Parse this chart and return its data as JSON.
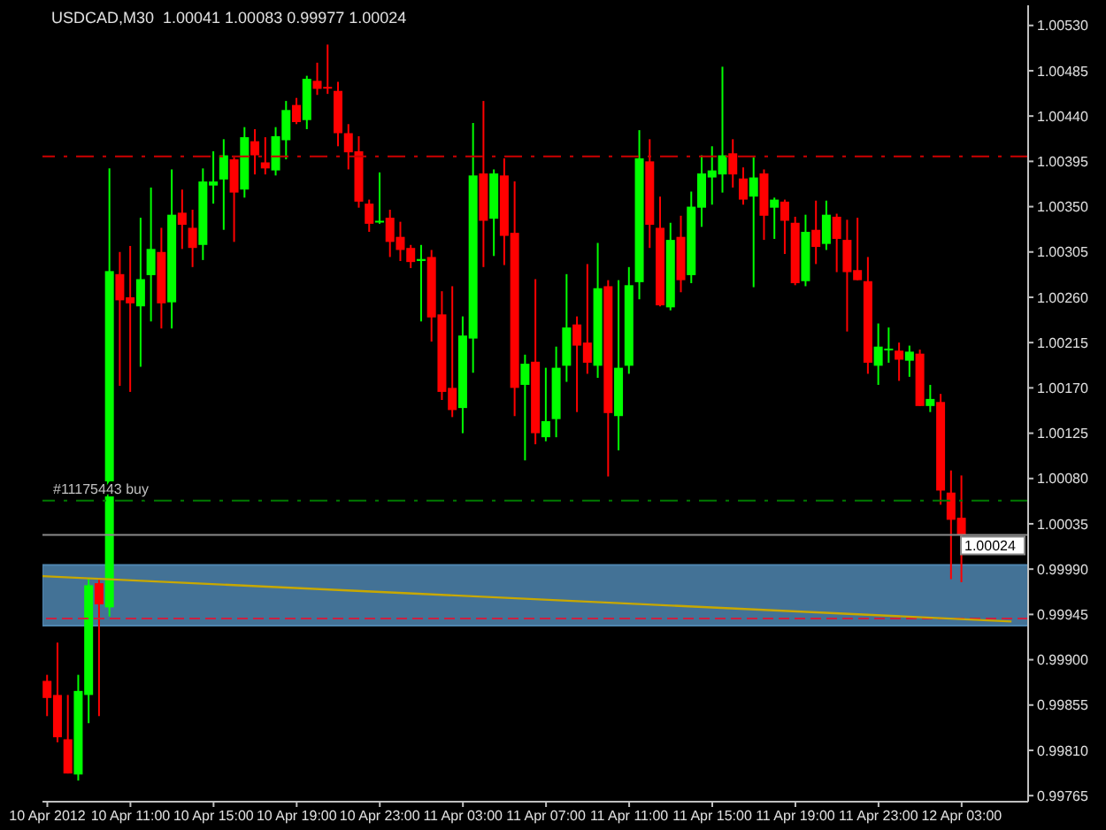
{
  "chart_data": {
    "type": "candlestick",
    "title": "USDCAD,M30  1.00041 1.00083 0.99977 1.00024",
    "x": [
      "2012-04-10T07:00",
      "2012-04-10T07:30",
      "2012-04-10T08:00",
      "2012-04-10T08:30",
      "2012-04-10T09:00",
      "2012-04-10T09:30",
      "2012-04-10T10:00",
      "2012-04-10T10:30",
      "2012-04-10T11:00",
      "2012-04-10T11:30",
      "2012-04-10T12:00",
      "2012-04-10T12:30",
      "2012-04-10T13:00",
      "2012-04-10T13:30",
      "2012-04-10T14:00",
      "2012-04-10T14:30",
      "2012-04-10T15:00",
      "2012-04-10T15:30",
      "2012-04-10T16:00",
      "2012-04-10T16:30",
      "2012-04-10T17:00",
      "2012-04-10T17:30",
      "2012-04-10T18:00",
      "2012-04-10T18:30",
      "2012-04-10T19:00",
      "2012-04-10T19:30",
      "2012-04-10T20:00",
      "2012-04-10T20:30",
      "2012-04-10T21:00",
      "2012-04-10T21:30",
      "2012-04-10T22:00",
      "2012-04-10T22:30",
      "2012-04-10T23:00",
      "2012-04-10T23:30",
      "2012-04-11T00:00",
      "2012-04-11T00:30",
      "2012-04-11T01:00",
      "2012-04-11T01:30",
      "2012-04-11T02:00",
      "2012-04-11T02:30",
      "2012-04-11T03:00",
      "2012-04-11T03:30",
      "2012-04-11T04:00",
      "2012-04-11T04:30",
      "2012-04-11T05:00",
      "2012-04-11T05:30",
      "2012-04-11T06:00",
      "2012-04-11T06:30",
      "2012-04-11T07:00",
      "2012-04-11T07:30",
      "2012-04-11T08:00",
      "2012-04-11T08:30",
      "2012-04-11T09:00",
      "2012-04-11T09:30",
      "2012-04-11T10:00",
      "2012-04-11T10:30",
      "2012-04-11T11:00",
      "2012-04-11T11:30",
      "2012-04-11T12:00",
      "2012-04-11T12:30",
      "2012-04-11T13:00",
      "2012-04-11T13:30",
      "2012-04-11T14:00",
      "2012-04-11T14:30",
      "2012-04-11T15:00",
      "2012-04-11T15:30",
      "2012-04-11T16:00",
      "2012-04-11T16:30",
      "2012-04-11T17:00",
      "2012-04-11T17:30",
      "2012-04-11T18:00",
      "2012-04-11T18:30",
      "2012-04-11T19:00",
      "2012-04-11T19:30",
      "2012-04-11T20:00",
      "2012-04-11T20:30",
      "2012-04-11T21:00",
      "2012-04-11T21:30",
      "2012-04-11T22:00",
      "2012-04-11T22:30",
      "2012-04-11T23:00",
      "2012-04-11T23:30",
      "2012-04-12T00:00",
      "2012-04-12T00:30",
      "2012-04-12T01:00",
      "2012-04-12T01:30",
      "2012-04-12T02:00",
      "2012-04-12T02:30",
      "2012-04-12T03:00"
    ],
    "ohlc": [
      [
        0.99879,
        0.99885,
        0.99844,
        0.99862
      ],
      [
        0.99865,
        0.99917,
        0.99818,
        0.99823
      ],
      [
        0.99821,
        0.99865,
        0.99787,
        0.99787
      ],
      [
        0.99786,
        0.99885,
        0.9978,
        0.99869
      ],
      [
        0.99865,
        0.99981,
        0.99837,
        0.99974
      ],
      [
        0.99976,
        0.99981,
        0.99844,
        0.99955
      ],
      [
        0.99952,
        1.00388,
        0.99943,
        1.00286
      ],
      [
        1.00283,
        1.00305,
        1.00172,
        1.00257
      ],
      [
        1.0026,
        1.00311,
        1.00166,
        1.00254
      ],
      [
        1.00251,
        1.00339,
        1.00191,
        1.00278
      ],
      [
        1.00282,
        1.00369,
        1.00236,
        1.00308
      ],
      [
        1.00305,
        1.00329,
        1.00229,
        1.00254
      ],
      [
        1.00255,
        1.00387,
        1.00229,
        1.00342
      ],
      [
        1.00344,
        1.00367,
        1.00308,
        1.00332
      ],
      [
        1.00329,
        1.00347,
        1.0029,
        1.00309
      ],
      [
        1.00312,
        1.00388,
        1.00297,
        1.00375
      ],
      [
        1.00371,
        1.00405,
        1.00353,
        1.00375
      ],
      [
        1.00377,
        1.00417,
        1.00327,
        1.00401
      ],
      [
        1.00397,
        1.00399,
        1.00315,
        1.00364
      ],
      [
        1.00367,
        1.00429,
        1.00359,
        1.00419
      ],
      [
        1.00415,
        1.00427,
        1.00382,
        1.00401
      ],
      [
        1.00394,
        1.00419,
        1.00382,
        1.00388
      ],
      [
        1.00386,
        1.00429,
        1.00381,
        1.0042
      ],
      [
        1.00416,
        1.00455,
        1.00397,
        1.00446
      ],
      [
        1.00451,
        1.00458,
        1.00432,
        1.00434
      ],
      [
        1.00436,
        1.0048,
        1.00427,
        1.00477
      ],
      [
        1.00475,
        1.00493,
        1.00461,
        1.00467
      ],
      [
        1.00469,
        1.00511,
        1.00462,
        1.00468
      ],
      [
        1.00465,
        1.00474,
        1.0041,
        1.00423
      ],
      [
        1.00423,
        1.00432,
        1.00387,
        1.00404
      ],
      [
        1.00405,
        1.0042,
        1.00349,
        1.00355
      ],
      [
        1.00353,
        1.00357,
        1.00325,
        1.00333
      ],
      [
        1.00335,
        1.00384,
        1.00333,
        1.00336
      ],
      [
        1.00339,
        1.00347,
        1.003,
        1.00315
      ],
      [
        1.0032,
        1.00335,
        1.00296,
        1.00307
      ],
      [
        1.00309,
        1.00312,
        1.00289,
        1.00295
      ],
      [
        1.00296,
        1.00312,
        1.00236,
        1.00298
      ],
      [
        1.003,
        1.00307,
        1.00216,
        1.0024
      ],
      [
        1.00243,
        1.00266,
        1.00158,
        1.00166
      ],
      [
        1.0017,
        1.00271,
        1.00141,
        1.00148
      ],
      [
        1.0015,
        1.00241,
        1.00125,
        1.00222
      ],
      [
        1.00219,
        1.00433,
        1.00185,
        1.00381
      ],
      [
        1.00383,
        1.00455,
        1.0029,
        1.00336
      ],
      [
        1.00338,
        1.00387,
        1.00301,
        1.00383
      ],
      [
        1.00381,
        1.00398,
        1.00292,
        1.00321
      ],
      [
        1.00324,
        1.00375,
        1.00142,
        1.0017
      ],
      [
        1.00173,
        1.00203,
        1.00098,
        1.00194
      ],
      [
        1.00196,
        1.00278,
        1.00114,
        1.00125
      ],
      [
        1.00121,
        1.0019,
        1.00117,
        1.00137
      ],
      [
        1.00139,
        1.00211,
        1.00121,
        1.0019
      ],
      [
        1.00192,
        1.00283,
        1.00176,
        1.0023
      ],
      [
        1.00233,
        1.00241,
        1.00146,
        1.00212
      ],
      [
        1.00215,
        1.00293,
        1.00184,
        1.00195
      ],
      [
        1.00192,
        1.00314,
        1.0018,
        1.00269
      ],
      [
        1.00271,
        1.00277,
        1.00082,
        1.00145
      ],
      [
        1.00142,
        1.00277,
        1.00108,
        1.0019
      ],
      [
        1.00192,
        1.0029,
        1.00184,
        1.00272
      ],
      [
        1.00275,
        1.00426,
        1.00258,
        1.00398
      ],
      [
        1.00395,
        1.00417,
        1.00309,
        1.00332
      ],
      [
        1.00329,
        1.0036,
        1.00251,
        1.00252
      ],
      [
        1.0025,
        1.00334,
        1.00247,
        1.00317
      ],
      [
        1.0032,
        1.00341,
        1.00265,
        1.00277
      ],
      [
        1.00282,
        1.00365,
        1.00274,
        1.0035
      ],
      [
        1.00349,
        1.00401,
        1.0033,
        1.00383
      ],
      [
        1.00379,
        1.0041,
        1.00352,
        1.00386
      ],
      [
        1.00382,
        1.00489,
        1.00364,
        1.00401
      ],
      [
        1.00403,
        1.00417,
        1.00369,
        1.00382
      ],
      [
        1.00378,
        1.00389,
        1.00352,
        1.00357
      ],
      [
        1.0036,
        1.00399,
        1.0027,
        1.00379
      ],
      [
        1.00383,
        1.00387,
        1.00317,
        1.00341
      ],
      [
        1.00349,
        1.00359,
        1.00318,
        1.00357
      ],
      [
        1.00355,
        1.00357,
        1.00303,
        1.00336
      ],
      [
        1.00334,
        1.0034,
        1.00272,
        1.00274
      ],
      [
        1.00276,
        1.00342,
        1.00271,
        1.00325
      ],
      [
        1.00327,
        1.00356,
        1.00293,
        1.0031
      ],
      [
        1.00313,
        1.00356,
        1.00307,
        1.00342
      ],
      [
        1.0034,
        1.00343,
        1.00285,
        1.00318
      ],
      [
        1.00317,
        1.00337,
        1.00226,
        1.00285
      ],
      [
        1.00287,
        1.00339,
        1.00277,
        1.00277
      ],
      [
        1.00276,
        1.003,
        1.00184,
        1.00195
      ],
      [
        1.00192,
        1.00234,
        1.00173,
        1.00211
      ],
      [
        1.00208,
        1.0023,
        1.00195,
        1.00209
      ],
      [
        1.00207,
        1.00215,
        1.00177,
        1.00198
      ],
      [
        1.00197,
        1.00212,
        1.00181,
        1.00206
      ],
      [
        1.00204,
        1.00208,
        1.00152,
        1.00152
      ],
      [
        1.00152,
        1.00173,
        1.00146,
        1.00159
      ],
      [
        1.00156,
        1.00164,
        1.00054,
        1.00068
      ],
      [
        1.00066,
        1.00088,
        0.9998,
        1.00039
      ],
      [
        1.00041,
        1.00083,
        0.99977,
        1.00024
      ]
    ],
    "colors": [
      "#ff0000",
      "#ff0000",
      "#ff0000",
      "#00ff00",
      "#00ff00",
      "#ff0000",
      "#00ff00",
      "#ff0000",
      "#ff0000",
      "#00ff00",
      "#00ff00",
      "#ff0000",
      "#00ff00",
      "#ff0000",
      "#ff0000",
      "#00ff00",
      "#00ff00",
      "#00ff00",
      "#ff0000",
      "#00ff00",
      "#ff0000",
      "#ff0000",
      "#00ff00",
      "#00ff00",
      "#ff0000",
      "#00ff00",
      "#ff0000",
      "#ff0000",
      "#ff0000",
      "#ff0000",
      "#ff0000",
      "#ff0000",
      "#00ff00",
      "#ff0000",
      "#ff0000",
      "#ff0000",
      "#00ff00",
      "#ff0000",
      "#ff0000",
      "#ff0000",
      "#00ff00",
      "#00ff00",
      "#ff0000",
      "#00ff00",
      "#ff0000",
      "#ff0000",
      "#00ff00",
      "#ff0000",
      "#00ff00",
      "#00ff00",
      "#00ff00",
      "#ff0000",
      "#ff0000",
      "#00ff00",
      "#ff0000",
      "#00ff00",
      "#00ff00",
      "#00ff00",
      "#ff0000",
      "#ff0000",
      "#00ff00",
      "#ff0000",
      "#00ff00",
      "#00ff00",
      "#00ff00",
      "#00ff00",
      "#ff0000",
      "#ff0000",
      "#00ff00",
      "#ff0000",
      "#00ff00",
      "#ff0000",
      "#ff0000",
      "#00ff00",
      "#ff0000",
      "#00ff00",
      "#ff0000",
      "#ff0000",
      "#ff0000",
      "#ff0000",
      "#00ff00",
      "#00ff00",
      "#ff0000",
      "#00ff00",
      "#ff0000",
      "#00ff00",
      "#ff0000",
      "#ff0000",
      "#ff0000"
    ],
    "series": [
      {
        "type": "line",
        "color": "#c8a800",
        "line_style": "solid",
        "x": [
          "2012-04-10T06:46",
          "2012-04-12T05:24"
        ],
        "values": [
          0.99983,
          0.99938
        ]
      }
    ],
    "xlim": [
      "2012-04-10T06:46",
      "2012-04-12T06:12"
    ],
    "xticks": [
      {
        "value": "2012-04-10T07:00",
        "label": "10 Apr 2012"
      },
      {
        "value": "2012-04-10T11:00",
        "label": "10 Apr 11:00"
      },
      {
        "value": "2012-04-10T15:00",
        "label": "10 Apr 15:00"
      },
      {
        "value": "2012-04-10T19:00",
        "label": "10 Apr 19:00"
      },
      {
        "value": "2012-04-10T23:00",
        "label": "10 Apr 23:00"
      },
      {
        "value": "2012-04-11T03:00",
        "label": "11 Apr 03:00"
      },
      {
        "value": "2012-04-11T07:00",
        "label": "11 Apr 07:00"
      },
      {
        "value": "2012-04-11T11:00",
        "label": "11 Apr 11:00"
      },
      {
        "value": "2012-04-11T15:00",
        "label": "11 Apr 15:00"
      },
      {
        "value": "2012-04-11T19:00",
        "label": "11 Apr 19:00"
      },
      {
        "value": "2012-04-11T23:00",
        "label": "11 Apr 23:00"
      },
      {
        "value": "2012-04-12T03:00",
        "label": "12 Apr 03:00"
      }
    ],
    "ylim": [
      0.99759,
      1.0055
    ],
    "yticks": [
      {
        "value": 1.0053,
        "label": "1.00530"
      },
      {
        "value": 1.00485,
        "label": "1.00485"
      },
      {
        "value": 1.0044,
        "label": "1.00440"
      },
      {
        "value": 1.00395,
        "label": "1.00395"
      },
      {
        "value": 1.0035,
        "label": "1.00350"
      },
      {
        "value": 1.00305,
        "label": "1.00305"
      },
      {
        "value": 1.0026,
        "label": "1.00260"
      },
      {
        "value": 1.00215,
        "label": "1.00215"
      },
      {
        "value": 1.0017,
        "label": "1.00170"
      },
      {
        "value": 1.00125,
        "label": "1.00125"
      },
      {
        "value": 1.0008,
        "label": "1.00080"
      },
      {
        "value": 1.00035,
        "label": "1.00035"
      },
      {
        "value": 0.9999,
        "label": "0.99990"
      },
      {
        "value": 0.99945,
        "label": "0.99945"
      },
      {
        "value": 0.999,
        "label": "0.99900"
      },
      {
        "value": 0.99855,
        "label": "0.99855"
      },
      {
        "value": 0.9981,
        "label": "0.99810"
      },
      {
        "value": 0.99765,
        "label": "0.99765"
      }
    ],
    "ref_lines": [
      {
        "axis": "y",
        "value": 1.004,
        "color": "#cc0000",
        "line_style": "dashdot"
      },
      {
        "axis": "y",
        "value": 1.00058,
        "label": "#11175443 buy",
        "color": "#007a00",
        "line_style": "dashdot"
      },
      {
        "axis": "y",
        "value": 1.00024,
        "label": "1.00024",
        "color": "#8a8a8a",
        "line_style": "solid"
      },
      {
        "axis": "y",
        "value": 0.99941,
        "color": "#cc2040",
        "line_style": "dashed"
      }
    ],
    "bands": [
      {
        "axis": "y",
        "from": 0.99934,
        "to": 0.99994,
        "color": "#4f86b0"
      }
    ],
    "grid": false,
    "legend": false
  }
}
